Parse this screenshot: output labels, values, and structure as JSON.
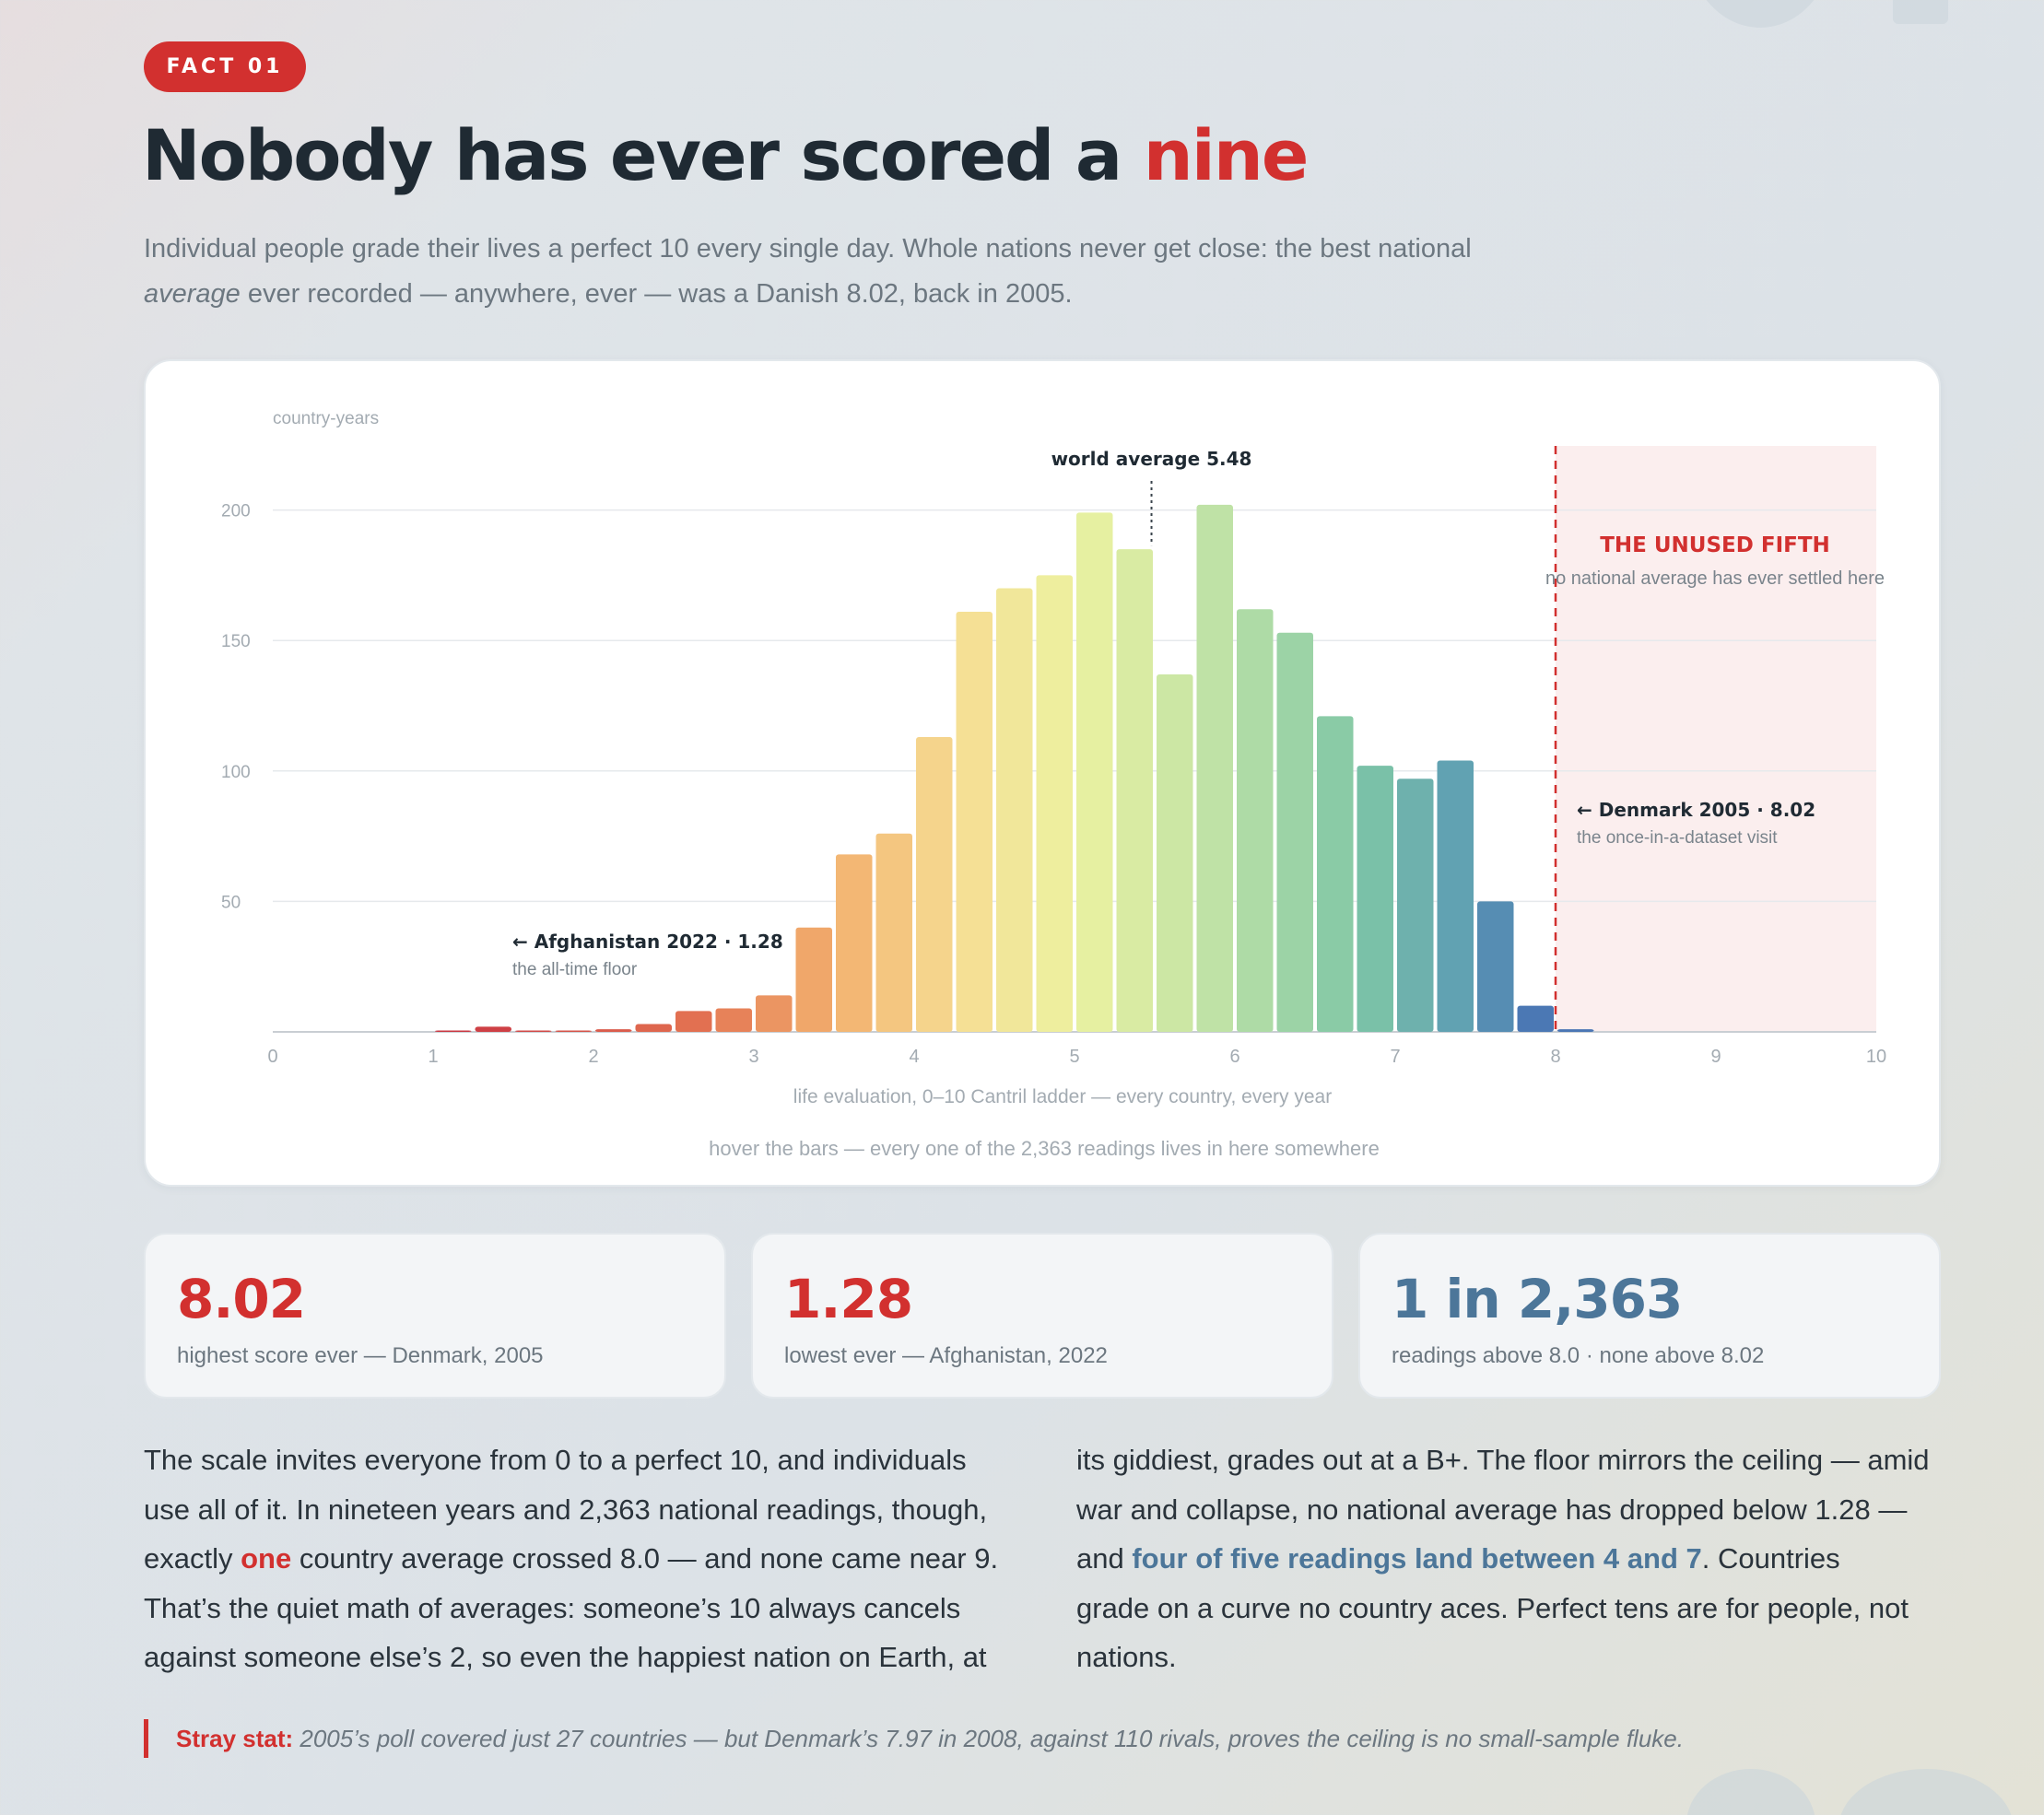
{
  "badge": "FACT 01",
  "headline": {
    "main": "Nobody has ever scored a ",
    "accent": "nine"
  },
  "lede": {
    "line1": "Individual people grade their lives a perfect 10 every single day. Whole nations never get close: the best national",
    "line2_em": "average",
    "line2_rest": " ever recorded — anywhere, ever — was a Danish 8.02, back in 2005."
  },
  "colors": {
    "accent_red": "#d2302f",
    "accent_blue": "#4c7699"
  },
  "chart_data": {
    "type": "bar",
    "ylabel": "country-years",
    "xlabel": "life evaluation, 0–10 Cantril ladder — every country, every year",
    "xlim": [
      0,
      10
    ],
    "ylim": [
      0,
      225
    ],
    "x_ticks": [
      0,
      1,
      2,
      3,
      4,
      5,
      6,
      7,
      8,
      9,
      10
    ],
    "y_ticks": [
      50,
      100,
      150,
      200
    ],
    "grid": true,
    "bin_width": 0.25,
    "bins": [
      {
        "x0": 1.0,
        "value": 0.5
      },
      {
        "x0": 1.25,
        "value": 2
      },
      {
        "x0": 1.5,
        "value": 0.5
      },
      {
        "x0": 1.75,
        "value": 0.5
      },
      {
        "x0": 2.0,
        "value": 1
      },
      {
        "x0": 2.25,
        "value": 3
      },
      {
        "x0": 2.5,
        "value": 8
      },
      {
        "x0": 2.75,
        "value": 9
      },
      {
        "x0": 3.0,
        "value": 14
      },
      {
        "x0": 3.25,
        "value": 40
      },
      {
        "x0": 3.5,
        "value": 68
      },
      {
        "x0": 3.75,
        "value": 76
      },
      {
        "x0": 4.0,
        "value": 113
      },
      {
        "x0": 4.25,
        "value": 161
      },
      {
        "x0": 4.5,
        "value": 170
      },
      {
        "x0": 4.75,
        "value": 175
      },
      {
        "x0": 5.0,
        "value": 199
      },
      {
        "x0": 5.25,
        "value": 185
      },
      {
        "x0": 5.5,
        "value": 137
      },
      {
        "x0": 5.75,
        "value": 202
      },
      {
        "x0": 6.0,
        "value": 162
      },
      {
        "x0": 6.25,
        "value": 153
      },
      {
        "x0": 6.5,
        "value": 121
      },
      {
        "x0": 6.75,
        "value": 102
      },
      {
        "x0": 7.0,
        "value": 97
      },
      {
        "x0": 7.25,
        "value": 104
      },
      {
        "x0": 7.5,
        "value": 50
      },
      {
        "x0": 7.75,
        "value": 10
      },
      {
        "x0": 8.0,
        "value": 1
      }
    ],
    "mean_line": {
      "x": 5.48,
      "label": "world average 5.48"
    },
    "threshold": {
      "x": 8
    },
    "zone": {
      "from": 8,
      "to": 10,
      "title": "THE UNUSED FIFTH",
      "subtitle": "no national average has ever settled here"
    },
    "annotations": [
      {
        "x": 1.28,
        "title": "← Afghanistan 2022 · 1.28",
        "subtitle": "the all-time floor"
      },
      {
        "x": 8.02,
        "title": "← Denmark 2005 · 8.02",
        "subtitle": "the once-in-a-dataset visit"
      }
    ],
    "hint": "hover the bars — every one of the 2,363 readings lives in here somewhere"
  },
  "stats": [
    {
      "value": "8.02",
      "label": "highest score ever — Denmark, 2005"
    },
    {
      "value": "1.28",
      "label": "lowest ever — Afghanistan, 2022"
    },
    {
      "value": "1 in 2,363",
      "label": "readings above 8.0 · none above 8.02"
    }
  ],
  "body": {
    "col1": {
      "line1": "The scale invites everyone from 0 to a perfect 10, and individuals",
      "line2": "use all of it. In nineteen years and 2,363 national readings, though,",
      "line3_pre": "exactly ",
      "line3_hl": "one",
      "line3_post": " country average crossed 8.0 — and none came near 9.",
      "line4": "That’s the quiet math of averages: someone’s 10 always cancels",
      "line5": "against someone else’s 2, so even the happiest nation on Earth, at"
    },
    "col2": {
      "line1": "its giddiest, grades out at a B+. The floor mirrors the ceiling — amid",
      "line2": "war and collapse, no national average has dropped below 1.28 —",
      "line3_pre": "and ",
      "line3_hl": "four of five readings land between 4 and 7",
      "line3_post": ". Countries",
      "line4": "grade on a curve no country aces. Perfect tens are for people, not",
      "line5": "nations."
    }
  },
  "stray": {
    "tag": "Stray stat:",
    "text": " 2005’s poll covered just 27 countries — but Denmark’s 7.97 in 2008, against 110 rivals, proves the ceiling is no small-sample fluke."
  }
}
